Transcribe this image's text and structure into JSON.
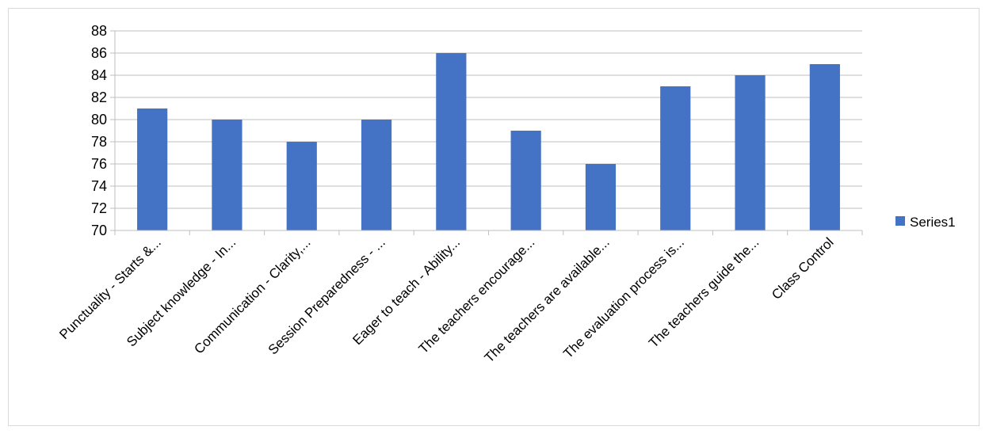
{
  "chart_data": {
    "type": "bar",
    "categories": [
      "Punctuality - Starts &...",
      "Subject knowledge - In...",
      "Communication - Clarity,...",
      "Session Preparedness - ...",
      "Eager to teach - Ability...",
      "The teachers encourage...",
      "The teachers are available...",
      "The evaluation process is...",
      "The teachers guide the...",
      "Class Control"
    ],
    "series": [
      {
        "name": "Series1",
        "values": [
          81,
          80,
          78,
          80,
          86,
          79,
          76,
          83,
          84,
          85
        ]
      }
    ],
    "yticks": [
      "70",
      "72",
      "74",
      "76",
      "78",
      "80",
      "82",
      "84",
      "86",
      "88"
    ],
    "ylim": [
      70,
      88
    ],
    "grid": true,
    "legend": "right",
    "bar_color": "#4472c4",
    "title": "",
    "xlabel": "",
    "ylabel": ""
  }
}
